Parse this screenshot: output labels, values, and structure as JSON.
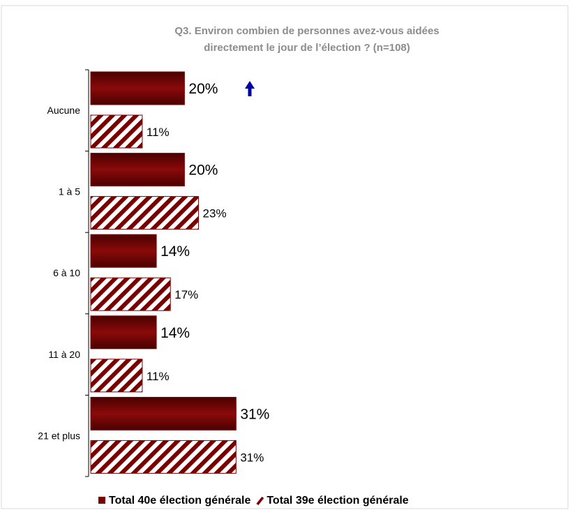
{
  "chart_data": {
    "type": "hbar",
    "title": "Q3. Environ combien de personnes avez-vous aidées",
    "subtitle": "directement le jour de l’élection ? (n=108)",
    "categories": [
      "Aucune",
      "1 à 5",
      "6 à 10",
      "11 à 20",
      "21 et plus"
    ],
    "series": [
      {
        "name": "Total 40e élection générale",
        "color": "#7a0000",
        "pattern": "solid",
        "values": [
          20,
          20,
          14,
          14,
          31
        ],
        "value_labels": [
          "20%",
          "20%",
          "14%",
          "14%",
          "31%"
        ]
      },
      {
        "name": "Total 39e élection générale",
        "color": "#7a0000",
        "pattern": "hatched",
        "values": [
          11,
          23,
          17,
          11,
          31
        ],
        "value_labels": [
          "11%",
          "23%",
          "17%",
          "11%",
          "31%"
        ]
      }
    ],
    "legend": "bottom"
  }
}
